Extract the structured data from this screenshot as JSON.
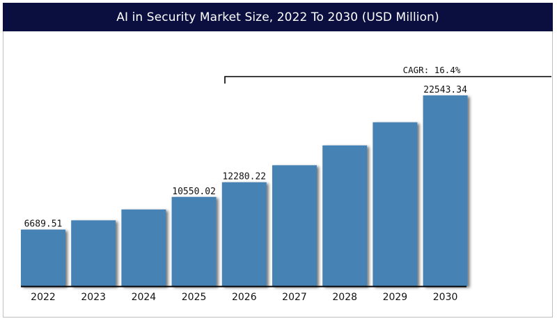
{
  "colors": {
    "title_bg": "#0a0f40",
    "title_fg": "#ffffff",
    "bar": "#4682b4",
    "axis": "#000000"
  },
  "chart_data": {
    "type": "bar",
    "title": "AI in Security Market Size, 2022 To 2030 (USD Million)",
    "xlabel": "",
    "ylabel": "",
    "grid": false,
    "legend": "none",
    "ylim": [
      0,
      22543.34
    ],
    "categories": [
      "2022",
      "2023",
      "2024",
      "2025",
      "2026",
      "2027",
      "2028",
      "2029",
      "2030"
    ],
    "values": [
      6689.51,
      7786,
      9064,
      10550.02,
      12280.22,
      14294,
      16638,
      19367,
      22543.34
    ],
    "data_labels": [
      {
        "category": "2022",
        "text": "6689.51"
      },
      {
        "category": "2025",
        "text": "10550.02"
      },
      {
        "category": "2026",
        "text": "12280.22"
      },
      {
        "category": "2030",
        "text": "22543.34"
      }
    ],
    "annotation": {
      "text": "CAGR: 16.4%",
      "from_category": "2026",
      "to_category": "2030"
    }
  }
}
